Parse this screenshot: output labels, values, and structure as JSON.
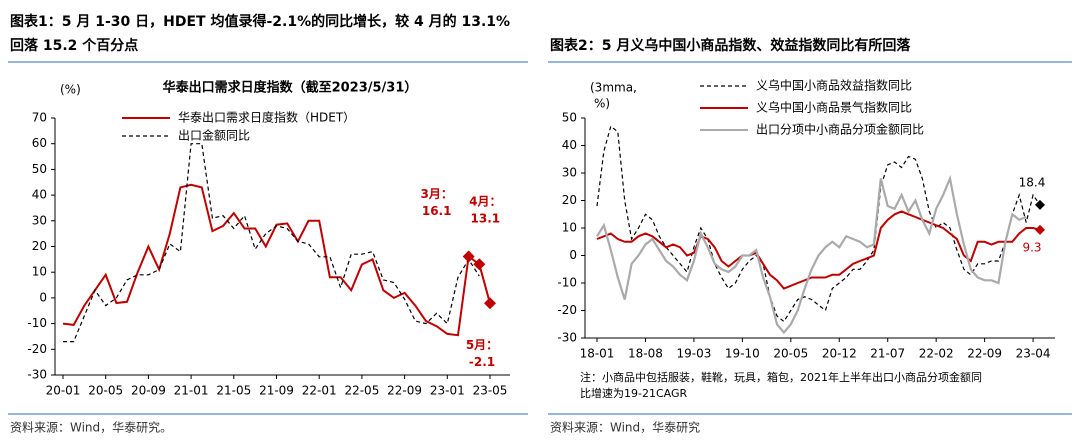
{
  "chart_data": [
    {
      "type": "line",
      "figure_title": [
        "图表1：5 月 1-30 日，HDET 均值录得-2.1%的同比增长，较 4 月的 13.1%",
        "回落 15.2 个百分点"
      ],
      "title": "华泰出口需求日度指数（截至2023/5/31）",
      "y_unit": [
        "(%)"
      ],
      "categories": [
        "20-01",
        null,
        null,
        null,
        "20-05",
        null,
        null,
        null,
        "20-09",
        null,
        null,
        null,
        "21-01",
        null,
        null,
        null,
        "21-05",
        null,
        null,
        null,
        "21-09",
        null,
        null,
        null,
        "22-01",
        null,
        null,
        null,
        "22-05",
        null,
        null,
        null,
        "22-09",
        null,
        null,
        null,
        "23-01",
        null,
        null,
        null,
        "23-05"
      ],
      "series": [
        {
          "name": "华泰出口需求日度指数（HDET）",
          "color": "#c00000",
          "dash": false,
          "values": [
            -10,
            -10.5,
            -3,
            3,
            9,
            -2,
            -1.5,
            10,
            20,
            11,
            25,
            43,
            44,
            43,
            26,
            28,
            33,
            27,
            27,
            20,
            28.5,
            29,
            22,
            30,
            30,
            8,
            8,
            3,
            13,
            15,
            3,
            0,
            2,
            -3,
            -9,
            -11,
            -14,
            -14.5,
            16.1,
            13.1,
            -2.1
          ]
        },
        {
          "name": "出口金额同比",
          "color": "#000000",
          "dash": true,
          "values": [
            -17,
            -17,
            -7,
            3,
            -3,
            0,
            7,
            9,
            9,
            11,
            21,
            18,
            60,
            60,
            31,
            32,
            27,
            32,
            19,
            25,
            28,
            27,
            22,
            21,
            16,
            16,
            4,
            17,
            17,
            18,
            7,
            6,
            -0.5,
            -9,
            -10,
            -6,
            -10,
            8,
            15,
            8.5,
            null
          ]
        }
      ],
      "annotations": [
        "3月：",
        "4月：",
        "5月："
      ],
      "ylim": [
        -30,
        70
      ],
      "yticks": [
        -30,
        -20,
        -10,
        0,
        10,
        20,
        30,
        40,
        50,
        60,
        70
      ],
      "source": "资料来源：Wind，华泰研究。"
    },
    {
      "type": "line",
      "figure_title": [
        "图表2：5 月义乌中国小商品指数、效益指数同比有所回落"
      ],
      "y_unit": [
        "(3mma,",
        "%)"
      ],
      "categories": [
        "18-01",
        null,
        null,
        null,
        null,
        null,
        null,
        "18-08",
        null,
        null,
        null,
        null,
        null,
        null,
        "19-03",
        null,
        null,
        null,
        null,
        null,
        null,
        "19-10",
        null,
        null,
        null,
        null,
        null,
        null,
        "20-05",
        null,
        null,
        null,
        null,
        null,
        null,
        "20-12",
        null,
        null,
        null,
        null,
        null,
        null,
        "21-07",
        null,
        null,
        null,
        null,
        null,
        null,
        "22-02",
        null,
        null,
        null,
        null,
        null,
        null,
        "22-09",
        null,
        null,
        null,
        null,
        null,
        null,
        "23-04",
        null
      ],
      "series": [
        {
          "name": "义乌中国小商品效益指数同比",
          "color": "#000000",
          "dash": true,
          "values": [
            18,
            38,
            47,
            45,
            20,
            6,
            10,
            15,
            13,
            7,
            3,
            0,
            -3,
            -6,
            3,
            10,
            6,
            -3,
            -8,
            -12,
            -10,
            -5,
            -2,
            0,
            -3,
            -15,
            -22,
            -24,
            -20,
            -16,
            -15,
            -16,
            -18,
            -20,
            -12,
            -10,
            -8,
            -5,
            -5,
            -2,
            2,
            25,
            33,
            34,
            32,
            36,
            35,
            28,
            16,
            10,
            12,
            10,
            2,
            -5,
            -7,
            -3,
            -3,
            -2,
            -2,
            5,
            15,
            22,
            12,
            22,
            18.4
          ]
        },
        {
          "name": "义乌中国小商品景气指数同比",
          "color": "#c00000",
          "dash": false,
          "values": [
            6,
            7,
            8,
            6,
            5,
            5,
            7,
            8,
            7,
            5,
            3,
            4,
            3,
            0,
            1,
            7,
            6,
            3,
            -2,
            -4,
            -2,
            0,
            0,
            1,
            -3,
            -7,
            -9,
            -12,
            -11,
            -10,
            -9,
            -8,
            -8,
            -8,
            -7,
            -7,
            -5,
            -3,
            -2,
            -1,
            0,
            10,
            13,
            15,
            16,
            15,
            14,
            13,
            12,
            11,
            10,
            8,
            6,
            0,
            -2,
            5,
            5,
            4,
            5,
            5,
            5,
            8,
            10,
            10,
            9.3
          ]
        },
        {
          "name": "出口分项中小商品分项金额同比",
          "color": "#aaaaaa",
          "dash": false,
          "values": [
            7,
            11,
            2,
            -8,
            -16,
            -3,
            0,
            4,
            6,
            2,
            -2,
            -4,
            -7,
            -9,
            -2,
            8,
            3,
            -3,
            -5,
            -6,
            -4,
            0,
            0,
            2,
            -8,
            -15,
            -25,
            -28,
            -25,
            -20,
            -12,
            -5,
            0,
            3,
            5,
            3,
            7,
            6,
            5,
            3,
            4,
            28,
            18,
            17,
            22,
            16,
            20,
            13,
            8,
            17,
            22,
            28,
            15,
            4,
            -5,
            -8,
            -9,
            -9,
            -10,
            5,
            15,
            13,
            14,
            null,
            null
          ]
        }
      ],
      "ylim": [
        -30,
        50
      ],
      "yticks": [
        -30,
        -20,
        -10,
        0,
        10,
        20,
        30,
        40,
        50
      ],
      "note": [
        "注：小商品中包括服装，鞋靴，玩具，箱包，2021年上半年出口小商品分项金额同",
        "比增速为19-21CAGR"
      ],
      "source": "资料来源：Wind，华泰研究"
    }
  ]
}
